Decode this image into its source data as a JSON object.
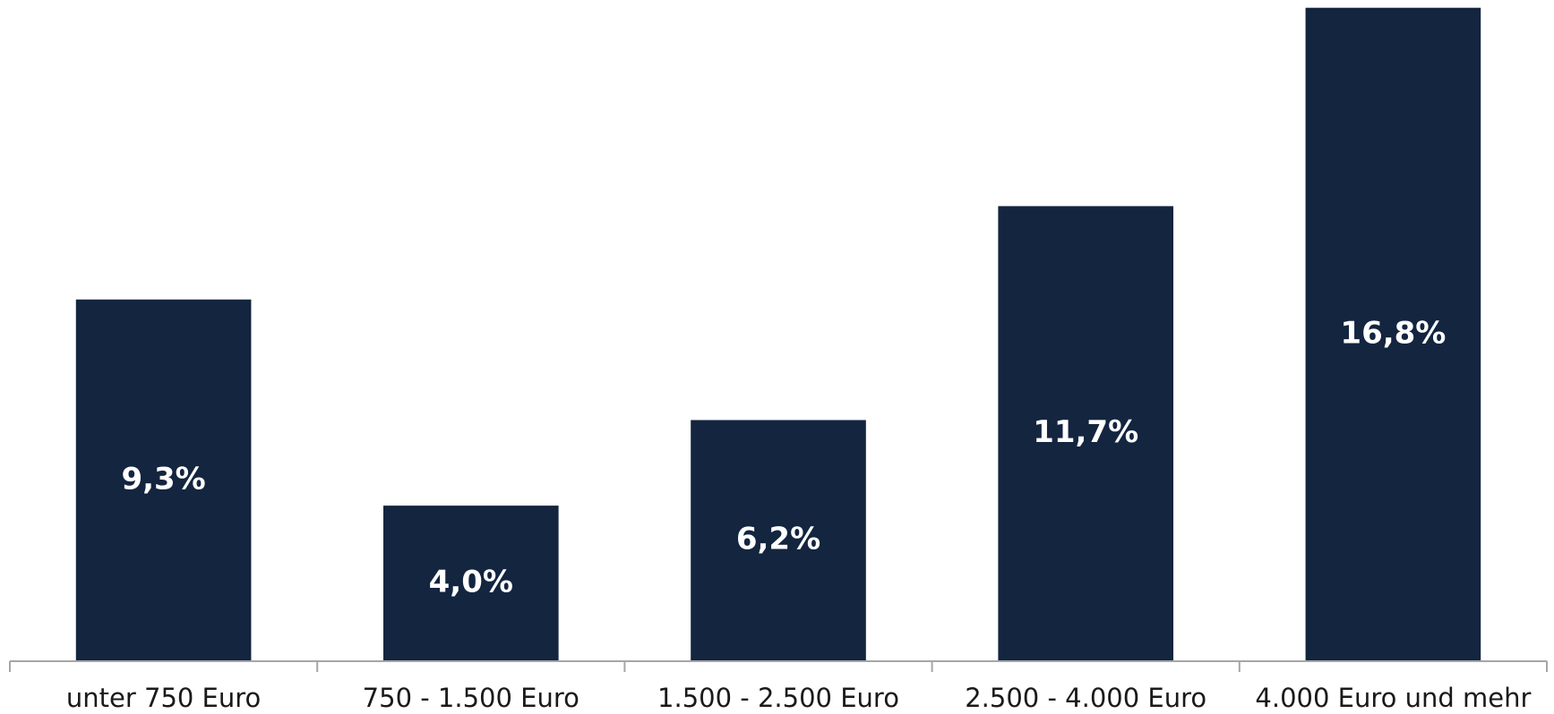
{
  "chart_data": {
    "type": "bar",
    "categories": [
      "unter 750 Euro",
      "750 - 1.500 Euro",
      "1.500 - 2.500 Euro",
      "2.500 - 4.000 Euro",
      "4.000 Euro und mehr"
    ],
    "values": [
      9.3,
      4.0,
      6.2,
      11.7,
      16.8
    ],
    "value_labels": [
      "9,3%",
      "4,0%",
      "6,2%",
      "11,7%",
      "16,8%"
    ],
    "color": "#13253f",
    "ylim": [
      0,
      17
    ]
  }
}
